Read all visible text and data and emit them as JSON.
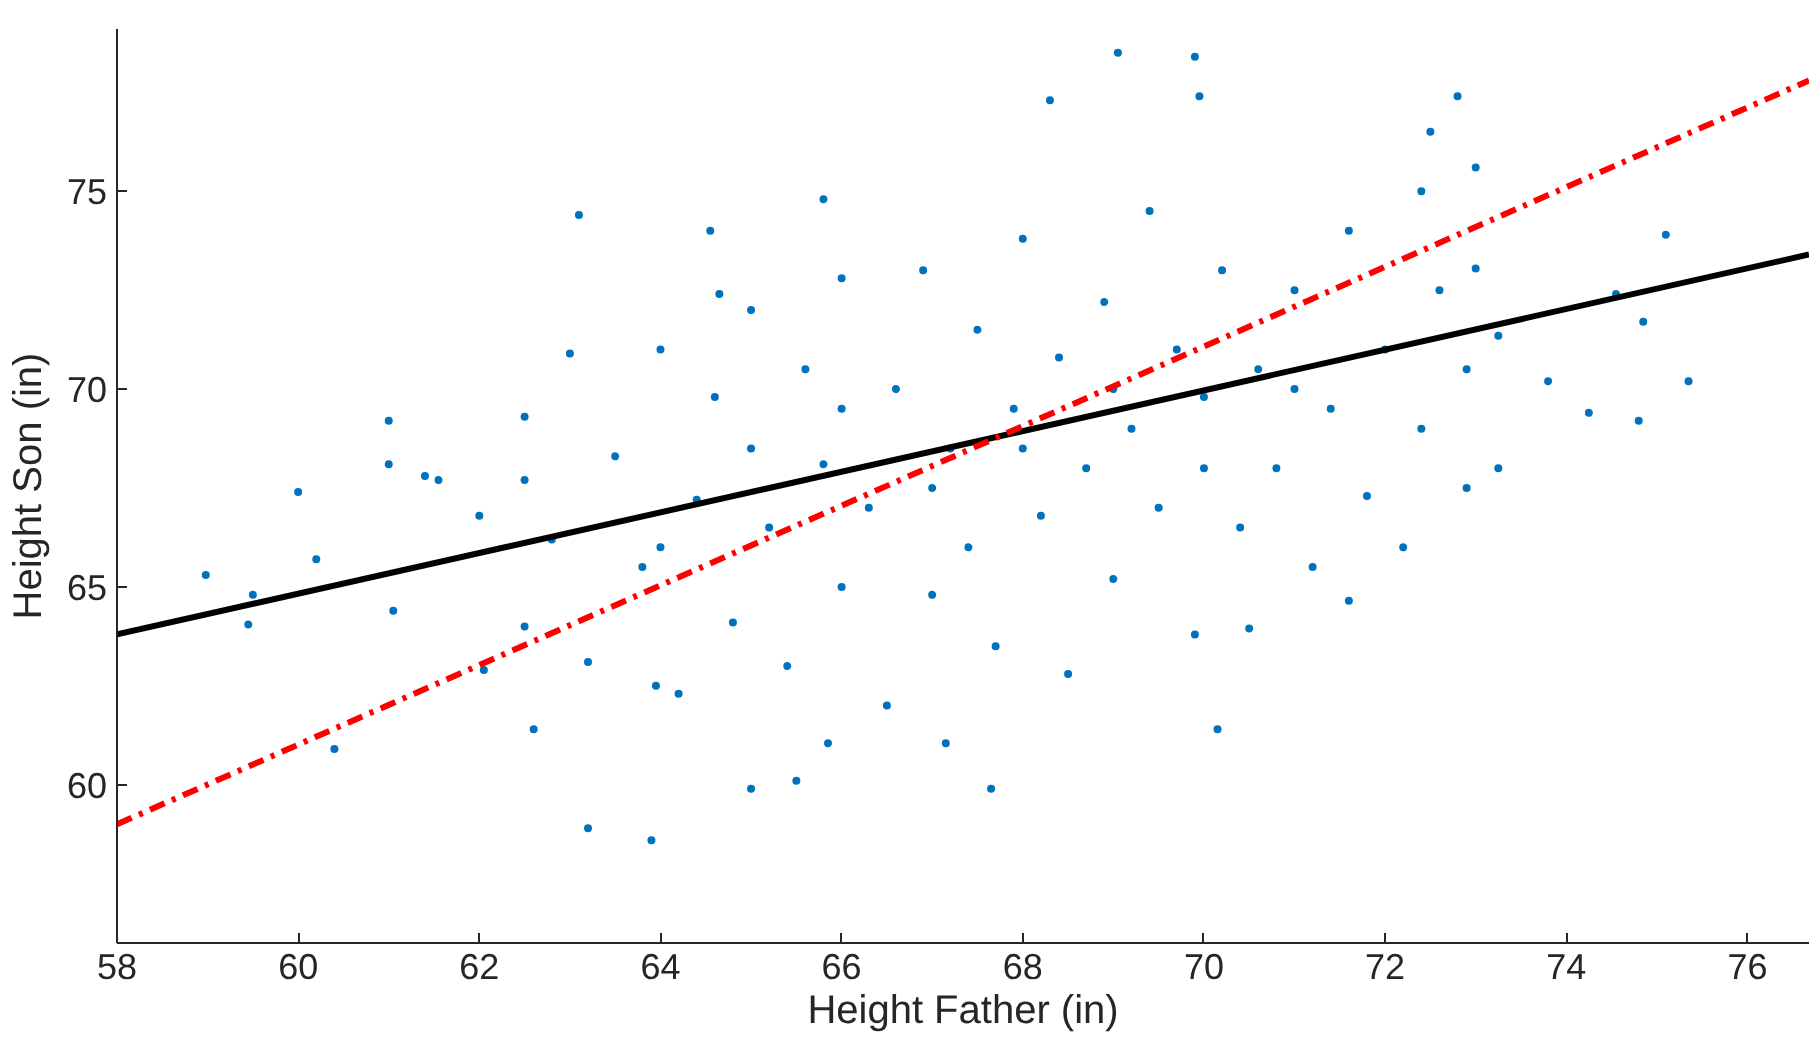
{
  "chart_data": {
    "type": "scatter",
    "xlabel": "Height Father (in)",
    "ylabel": "Height Son (in)",
    "xlim": [
      58,
      76.68
    ],
    "ylim": [
      56,
      79.1
    ],
    "xticks": [
      58,
      60,
      62,
      64,
      66,
      68,
      70,
      72,
      74,
      76
    ],
    "yticks": [
      60,
      65,
      70,
      75
    ],
    "grid": false,
    "series": [
      {
        "color": "#0072bd",
        "marker": "circle",
        "x": [
          58.98,
          59.45,
          59.5,
          60.0,
          60.2,
          60.4,
          61.0,
          61.0,
          61.05,
          61.4,
          61.55,
          62.0,
          62.05,
          62.5,
          62.6,
          63.1,
          63.2,
          63.9,
          63.95,
          64.55,
          64.65,
          65.0,
          65.5,
          65.85,
          65.8,
          67.15,
          67.65,
          68.3,
          69.05,
          69.95,
          69.9,
          70.15,
          70.5,
          71.6,
          72.4,
          72.5,
          72.8,
          73.0,
          73.0,
          73.25,
          73.25,
          73.8,
          74.25,
          74.55,
          74.85,
          74.8,
          75.1,
          75.35,
          62.5,
          62.5,
          62.8,
          63.0,
          63.2,
          63.5,
          63.8,
          64.0,
          64.2,
          64.4,
          64.6,
          64.8,
          65.0,
          65.2,
          65.4,
          65.6,
          65.8,
          66.0,
          66.0,
          66.3,
          66.5,
          66.6,
          66.9,
          67.0,
          67.2,
          67.4,
          67.5,
          67.7,
          67.9,
          68.0,
          68.2,
          68.4,
          68.5,
          68.7,
          68.9,
          69.0,
          69.2,
          69.4,
          69.5,
          69.7,
          69.9,
          70.0,
          70.2,
          70.4,
          70.6,
          70.8,
          71.0,
          71.2,
          71.4,
          71.6,
          71.8,
          72.0,
          72.2,
          72.4,
          72.6,
          72.9,
          72.9,
          64.0,
          65.0,
          66.0,
          67.0,
          68.0,
          69.0,
          70.0,
          71.0
        ],
        "values": [
          65.3,
          64.05,
          64.8,
          67.4,
          65.7,
          60.9,
          69.2,
          68.1,
          64.4,
          67.8,
          67.7,
          66.8,
          62.9,
          67.7,
          61.4,
          74.4,
          58.9,
          58.6,
          62.5,
          74.0,
          72.4,
          59.9,
          60.1,
          61.05,
          74.8,
          61.05,
          59.9,
          77.3,
          78.5,
          77.4,
          78.4,
          61.4,
          63.95,
          64.65,
          75.0,
          76.5,
          77.4,
          75.6,
          73.05,
          68.0,
          71.35,
          70.2,
          69.4,
          72.4,
          71.7,
          69.2,
          73.9,
          70.2,
          64.0,
          69.3,
          66.2,
          70.9,
          63.1,
          68.3,
          65.5,
          71.0,
          62.3,
          67.2,
          69.8,
          64.1,
          72.0,
          66.5,
          63.0,
          70.5,
          68.1,
          65.0,
          72.8,
          67.0,
          62.0,
          70.0,
          73.0,
          64.8,
          68.5,
          66.0,
          71.5,
          63.5,
          69.5,
          73.8,
          66.8,
          70.8,
          62.8,
          68.0,
          72.2,
          65.2,
          69.0,
          74.5,
          67.0,
          71.0,
          63.8,
          69.8,
          73.0,
          66.5,
          70.5,
          68.0,
          72.5,
          65.5,
          69.5,
          74.0,
          67.3,
          71.0,
          66.0,
          69.0,
          72.5,
          67.5,
          70.5,
          66.0,
          68.5,
          69.5,
          67.5,
          68.5,
          70.0,
          68.0,
          70.0
        ]
      },
      {
        "type": "line",
        "color": "#000000",
        "line_style": "solid",
        "x": [
          58,
          76.68
        ],
        "values": [
          63.8,
          73.4
        ]
      },
      {
        "type": "line",
        "color": "#ff0000",
        "line_style": "dashed",
        "x": [
          58,
          76.68
        ],
        "values": [
          59.0,
          77.8
        ]
      }
    ]
  }
}
